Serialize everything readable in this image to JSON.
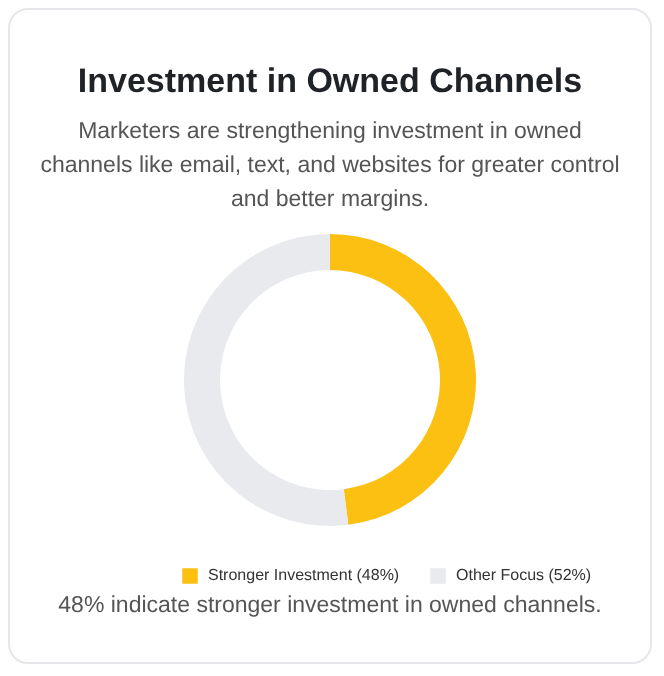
{
  "chart_data": {
    "type": "donut",
    "title": "Investment in Owned Channels",
    "subtitle": "Marketers are strengthening investment in owned channels like email, text, and websites for greater control and better margins.",
    "categories": [
      "Stronger Investment (48%)",
      "Other Focus (52%)"
    ],
    "values": [
      48,
      52
    ],
    "colors": [
      "#fbc012",
      "#e8eaed"
    ],
    "legend": "bottom",
    "annotations": [
      "48% indicate stronger investment in owned channels."
    ]
  }
}
